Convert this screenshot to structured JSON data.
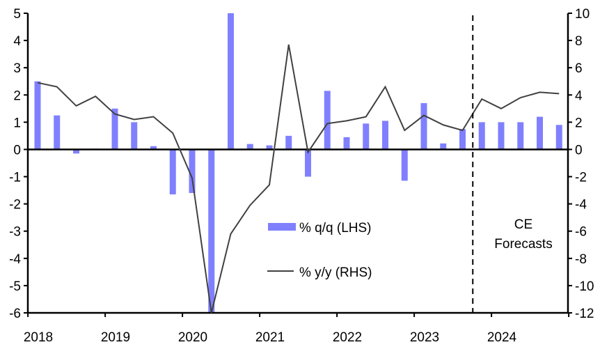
{
  "chart_data": {
    "type": "bar+line",
    "title": "",
    "x_tick_labels": [
      "2018",
      "2019",
      "2020",
      "2021",
      "2022",
      "2023",
      "2024"
    ],
    "quarters": [
      "2018Q1",
      "2018Q2",
      "2018Q3",
      "2018Q4",
      "2019Q1",
      "2019Q2",
      "2019Q3",
      "2019Q4",
      "2020Q1",
      "2020Q2",
      "2020Q3",
      "2020Q4",
      "2021Q1",
      "2021Q2",
      "2021Q3",
      "2021Q4",
      "2022Q1",
      "2022Q2",
      "2022Q3",
      "2022Q4",
      "2023Q1",
      "2023Q2",
      "2023Q3",
      "2023Q4",
      "2024Q1",
      "2024Q2",
      "2024Q3",
      "2024Q4"
    ],
    "left_axis": {
      "ylim": [
        -6,
        5
      ],
      "ticks": [
        5,
        4,
        3,
        2,
        1,
        0,
        -1,
        -2,
        -3,
        -4,
        -5,
        -6
      ]
    },
    "right_axis": {
      "ylim": [
        -12,
        10
      ],
      "ticks": [
        10,
        8,
        6,
        4,
        2,
        0,
        -2,
        -4,
        -6,
        -8,
        -10,
        -12
      ]
    },
    "series": [
      {
        "name": "% q/q (LHS)",
        "type": "bar",
        "axis": "left",
        "color": "#8080ff",
        "values": [
          2.5,
          1.25,
          -0.15,
          0.03,
          1.5,
          1.0,
          0.12,
          -1.65,
          -1.6,
          -6.0,
          5.0,
          0.2,
          0.15,
          0.5,
          -1.0,
          2.15,
          0.45,
          0.95,
          1.05,
          -1.15,
          1.7,
          0.22,
          0.75,
          1.0,
          1.0,
          1.0,
          1.2,
          0.9
        ]
      },
      {
        "name": "% y/y (RHS)",
        "type": "line",
        "axis": "right",
        "color": "#404040",
        "values": [
          4.9,
          4.6,
          3.2,
          3.9,
          2.6,
          2.2,
          2.4,
          1.2,
          -2.1,
          -12.0,
          -6.2,
          -4.1,
          -2.6,
          7.7,
          -0.2,
          1.9,
          2.1,
          2.4,
          4.6,
          1.4,
          2.5,
          1.8,
          1.4,
          3.7,
          3.0,
          3.8,
          4.2,
          4.1
        ]
      }
    ],
    "forecast_start": "2023Q4",
    "annotation": [
      "CE",
      "Forecasts"
    ],
    "legend_placement": "center"
  }
}
